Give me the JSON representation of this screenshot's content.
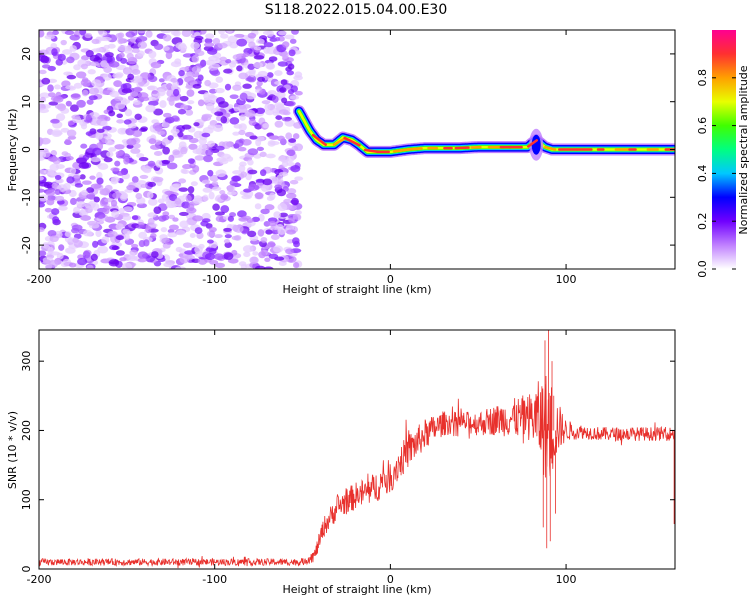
{
  "title": "S118.2022.015.04.00.E30",
  "chart_data": [
    {
      "type": "heatmap",
      "xlabel": "Height of straight line (km)",
      "ylabel": "Frequency (Hz)",
      "xlim": [
        -200,
        162
      ],
      "ylim": [
        -25,
        25
      ],
      "xticks": [
        -200,
        -100,
        0,
        100
      ],
      "xtick_labels": [
        "-200",
        "-100",
        "0",
        "100"
      ],
      "yticks": [
        -20,
        -10,
        0,
        10,
        20
      ],
      "ytick_labels": [
        "-20",
        "-10",
        "0",
        "10",
        "20"
      ],
      "noise_region_x": [
        -200,
        -52
      ],
      "trace": {
        "x": [
          -52,
          -46,
          -42,
          -38,
          -32,
          -27,
          -22,
          -18,
          -13,
          -8,
          0,
          10,
          20,
          30,
          40,
          50,
          60,
          70,
          78,
          83,
          88,
          92,
          100,
          110,
          120,
          130,
          140,
          150,
          162
        ],
        "y": [
          8,
          4,
          2,
          1,
          1,
          2.5,
          2,
          1,
          -0.5,
          -0.5,
          -0.5,
          0,
          0.3,
          0.3,
          0.3,
          0.5,
          0.5,
          0.5,
          0.5,
          2,
          0.5,
          0,
          0,
          0,
          0,
          0,
          0,
          0,
          0
        ]
      },
      "colorbar": {
        "label": "Normalized spectral amplitude",
        "range": [
          0,
          1
        ],
        "ticks": [
          0.0,
          0.2,
          0.4,
          0.6,
          0.8
        ],
        "tick_labels": [
          "0.0",
          "0.2",
          "0.4",
          "0.6",
          "0.8"
        ],
        "colors": [
          "#ffffff",
          "#c080ff",
          "#7000ff",
          "#0000ff",
          "#00c8ff",
          "#00ff80",
          "#40ff00",
          "#e8ff00",
          "#ffa000",
          "#ff3030",
          "#ff0090"
        ]
      }
    },
    {
      "type": "line",
      "xlabel": "Height of straight line (km)",
      "ylabel": "SNR (10 * v/v)",
      "xlim": [
        -200,
        162
      ],
      "ylim": [
        0,
        345
      ],
      "xticks": [
        -200,
        -100,
        0,
        100
      ],
      "xtick_labels": [
        "-200",
        "-100",
        "0",
        "100"
      ],
      "yticks": [
        0,
        100,
        200,
        300
      ],
      "ytick_labels": [
        "0",
        "100",
        "200",
        "300"
      ],
      "color": "#e8302c",
      "envelope": {
        "x": [
          -200,
          -50,
          -43,
          -38,
          -30,
          -20,
          -10,
          0,
          10,
          20,
          30,
          40,
          50,
          60,
          70,
          80,
          85,
          90,
          95,
          100,
          110,
          120,
          130,
          140,
          150,
          162
        ],
        "mean": [
          10,
          10,
          20,
          60,
          90,
          105,
          115,
          135,
          170,
          195,
          210,
          212,
          210,
          215,
          218,
          220,
          215,
          200,
          205,
          200,
          198,
          195,
          195,
          195,
          195,
          195
        ],
        "spread": [
          5,
          5,
          10,
          15,
          18,
          20,
          22,
          25,
          25,
          22,
          18,
          15,
          18,
          22,
          28,
          35,
          60,
          90,
          40,
          15,
          10,
          10,
          10,
          10,
          10,
          10
        ]
      }
    }
  ]
}
